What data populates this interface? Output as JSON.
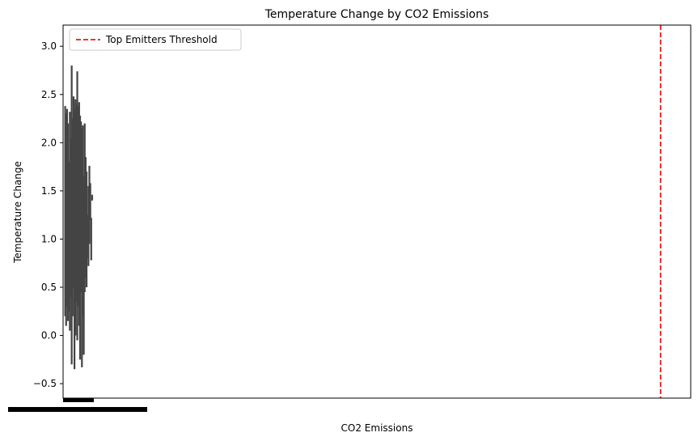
{
  "chart_data": {
    "type": "bar",
    "title": "Temperature Change by CO2 Emissions",
    "xlabel": "CO2 Emissions",
    "ylabel": "Temperature Change",
    "ylim": [
      -0.65,
      3.22
    ],
    "yticks": [
      -0.5,
      0.0,
      0.5,
      1.0,
      1.5,
      2.0,
      2.5,
      3.0
    ],
    "ytick_labels": [
      "−0.5",
      "0.0",
      "0.5",
      "1.0",
      "1.5",
      "2.0",
      "2.5",
      "3.0"
    ],
    "grid": false,
    "legend": {
      "placement": "top-left",
      "entries": [
        {
          "label": "Top Emitters Threshold",
          "color": "#e41a1c",
          "style": "dashed"
        }
      ]
    },
    "threshold_line": {
      "label": "Top Emitters Threshold",
      "color": "#e41a1c",
      "x_fraction": 0.952
    },
    "bar_color": "#444444",
    "intervals": [
      [
        0.2,
        2.38
      ],
      [
        0.1,
        2.3
      ],
      [
        0.3,
        2.35
      ],
      [
        0.15,
        2.2
      ],
      [
        0.25,
        1.8
      ],
      [
        0.05,
        2.32
      ],
      [
        0.4,
        2.05
      ],
      [
        -0.3,
        2.8
      ],
      [
        0.2,
        2.25
      ],
      [
        0.5,
        2.48
      ],
      [
        -0.35,
        2.35
      ],
      [
        0.0,
        2.45
      ],
      [
        0.35,
        2.4
      ],
      [
        -0.05,
        2.74
      ],
      [
        0.3,
        2.38
      ],
      [
        0.1,
        2.42
      ],
      [
        -0.25,
        2.28
      ],
      [
        0.45,
        2.22
      ],
      [
        -0.33,
        2.15
      ],
      [
        0.2,
        2.18
      ],
      [
        -0.2,
        1.65
      ],
      [
        0.45,
        2.2
      ],
      [
        0.6,
        1.85
      ],
      [
        0.5,
        1.7
      ],
      [
        0.8,
        1.25
      ],
      [
        0.72,
        1.55
      ],
      [
        0.95,
        1.76
      ],
      [
        1.2,
        1.58
      ],
      [
        0.78,
        1.22
      ],
      [
        1.4,
        1.46
      ]
    ]
  }
}
